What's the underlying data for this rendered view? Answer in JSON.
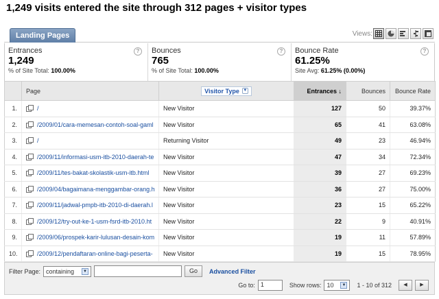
{
  "title": "1,249 visits entered the site through 312 pages + visitor types",
  "tab": "Landing Pages",
  "views_label": "Views:",
  "view_icons": [
    "table-view-icon",
    "pie-view-icon",
    "performance-view-icon",
    "comparison-view-icon",
    "pivot-view-icon"
  ],
  "summary": [
    {
      "label": "Entrances",
      "value": "1,249",
      "sub_prefix": "% of Site Total:",
      "sub_value": "100.00%"
    },
    {
      "label": "Bounces",
      "value": "765",
      "sub_prefix": "% of Site Total:",
      "sub_value": "100.00%"
    },
    {
      "label": "Bounce Rate",
      "value": "61.25%",
      "sub_prefix": "Site Avg:",
      "sub_value": "61.25% (0.00%)"
    }
  ],
  "columns": {
    "page": "Page",
    "visitor_type": "Visitor Type",
    "entrances": "Entrances",
    "bounces": "Bounces",
    "bounce_rate": "Bounce Rate"
  },
  "rows": [
    {
      "idx": "1.",
      "page": "/",
      "visitor": "New Visitor",
      "entrances": "127",
      "bounces": "50",
      "rate": "39.37%"
    },
    {
      "idx": "2.",
      "page": "/2009/01/cara-memesan-contoh-soal-gaml",
      "visitor": "New Visitor",
      "entrances": "65",
      "bounces": "41",
      "rate": "63.08%"
    },
    {
      "idx": "3.",
      "page": "/",
      "visitor": "Returning Visitor",
      "entrances": "49",
      "bounces": "23",
      "rate": "46.94%"
    },
    {
      "idx": "4.",
      "page": "/2009/11/informasi-usm-itb-2010-daerah-te",
      "visitor": "New Visitor",
      "entrances": "47",
      "bounces": "34",
      "rate": "72.34%"
    },
    {
      "idx": "5.",
      "page": "/2009/11/tes-bakat-skolastik-usm-itb.html",
      "visitor": "New Visitor",
      "entrances": "39",
      "bounces": "27",
      "rate": "69.23%"
    },
    {
      "idx": "6.",
      "page": "/2009/04/bagaimana-menggambar-orang.h",
      "visitor": "New Visitor",
      "entrances": "36",
      "bounces": "27",
      "rate": "75.00%"
    },
    {
      "idx": "7.",
      "page": "/2009/11/jadwal-pmpb-itb-2010-di-daerah.l",
      "visitor": "New Visitor",
      "entrances": "23",
      "bounces": "15",
      "rate": "65.22%"
    },
    {
      "idx": "8.",
      "page": "/2009/12/try-out-ke-1-usm-fsrd-itb-2010.ht",
      "visitor": "New Visitor",
      "entrances": "22",
      "bounces": "9",
      "rate": "40.91%"
    },
    {
      "idx": "9.",
      "page": "/2009/06/prospek-karir-lulusan-desain-kom",
      "visitor": "New Visitor",
      "entrances": "19",
      "bounces": "11",
      "rate": "57.89%"
    },
    {
      "idx": "10.",
      "page": "/2009/12/pendaftaran-online-bagi-peserta-",
      "visitor": "New Visitor",
      "entrances": "19",
      "bounces": "15",
      "rate": "78.95%"
    }
  ],
  "footer": {
    "filter_label": "Filter Page:",
    "filter_mode": "containing",
    "filter_value": "",
    "go": "Go",
    "advanced": "Advanced Filter",
    "goto_label": "Go to:",
    "goto_value": "1",
    "show_rows_label": "Show rows:",
    "show_rows_value": "10",
    "range": "1 - 10 of 312",
    "prev": "◀",
    "next": "▶"
  }
}
